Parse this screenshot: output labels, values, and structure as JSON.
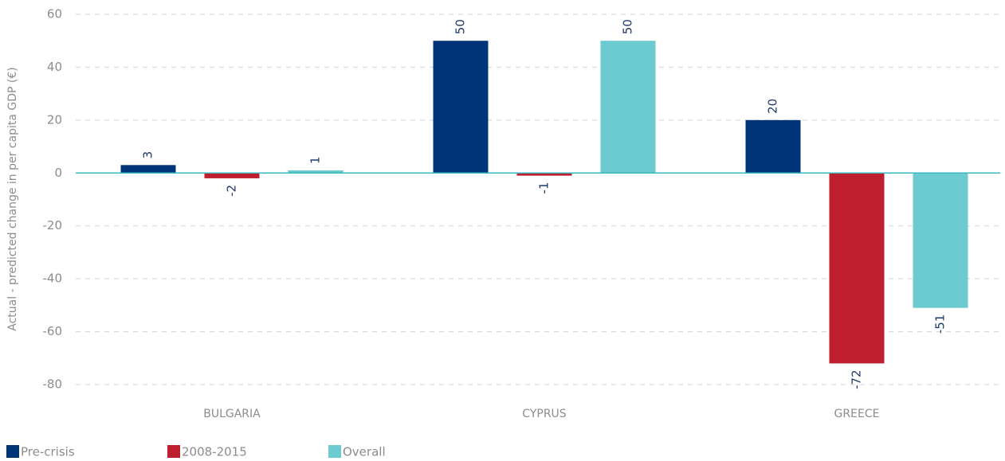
{
  "chart_data": {
    "type": "bar",
    "y_label": "Actual - predicted change in per capita GDP (€)",
    "categories": [
      "BULGARIA",
      "CYPRUS",
      "GREECE"
    ],
    "series": [
      {
        "name": "Pre-crisis",
        "color": "#003479",
        "values": [
          3,
          50,
          20
        ]
      },
      {
        "name": "2008-2015",
        "color": "#be1e2d",
        "values": [
          -2,
          -1,
          -72
        ]
      },
      {
        "name": "Overall",
        "color": "#6bcbd0",
        "values": [
          1,
          50,
          -51
        ]
      }
    ],
    "ylim": [
      -80,
      60
    ],
    "yticks": [
      -80,
      -60,
      -40,
      -20,
      0,
      20,
      40,
      60
    ],
    "grid": true,
    "legend": "bottom-left"
  }
}
